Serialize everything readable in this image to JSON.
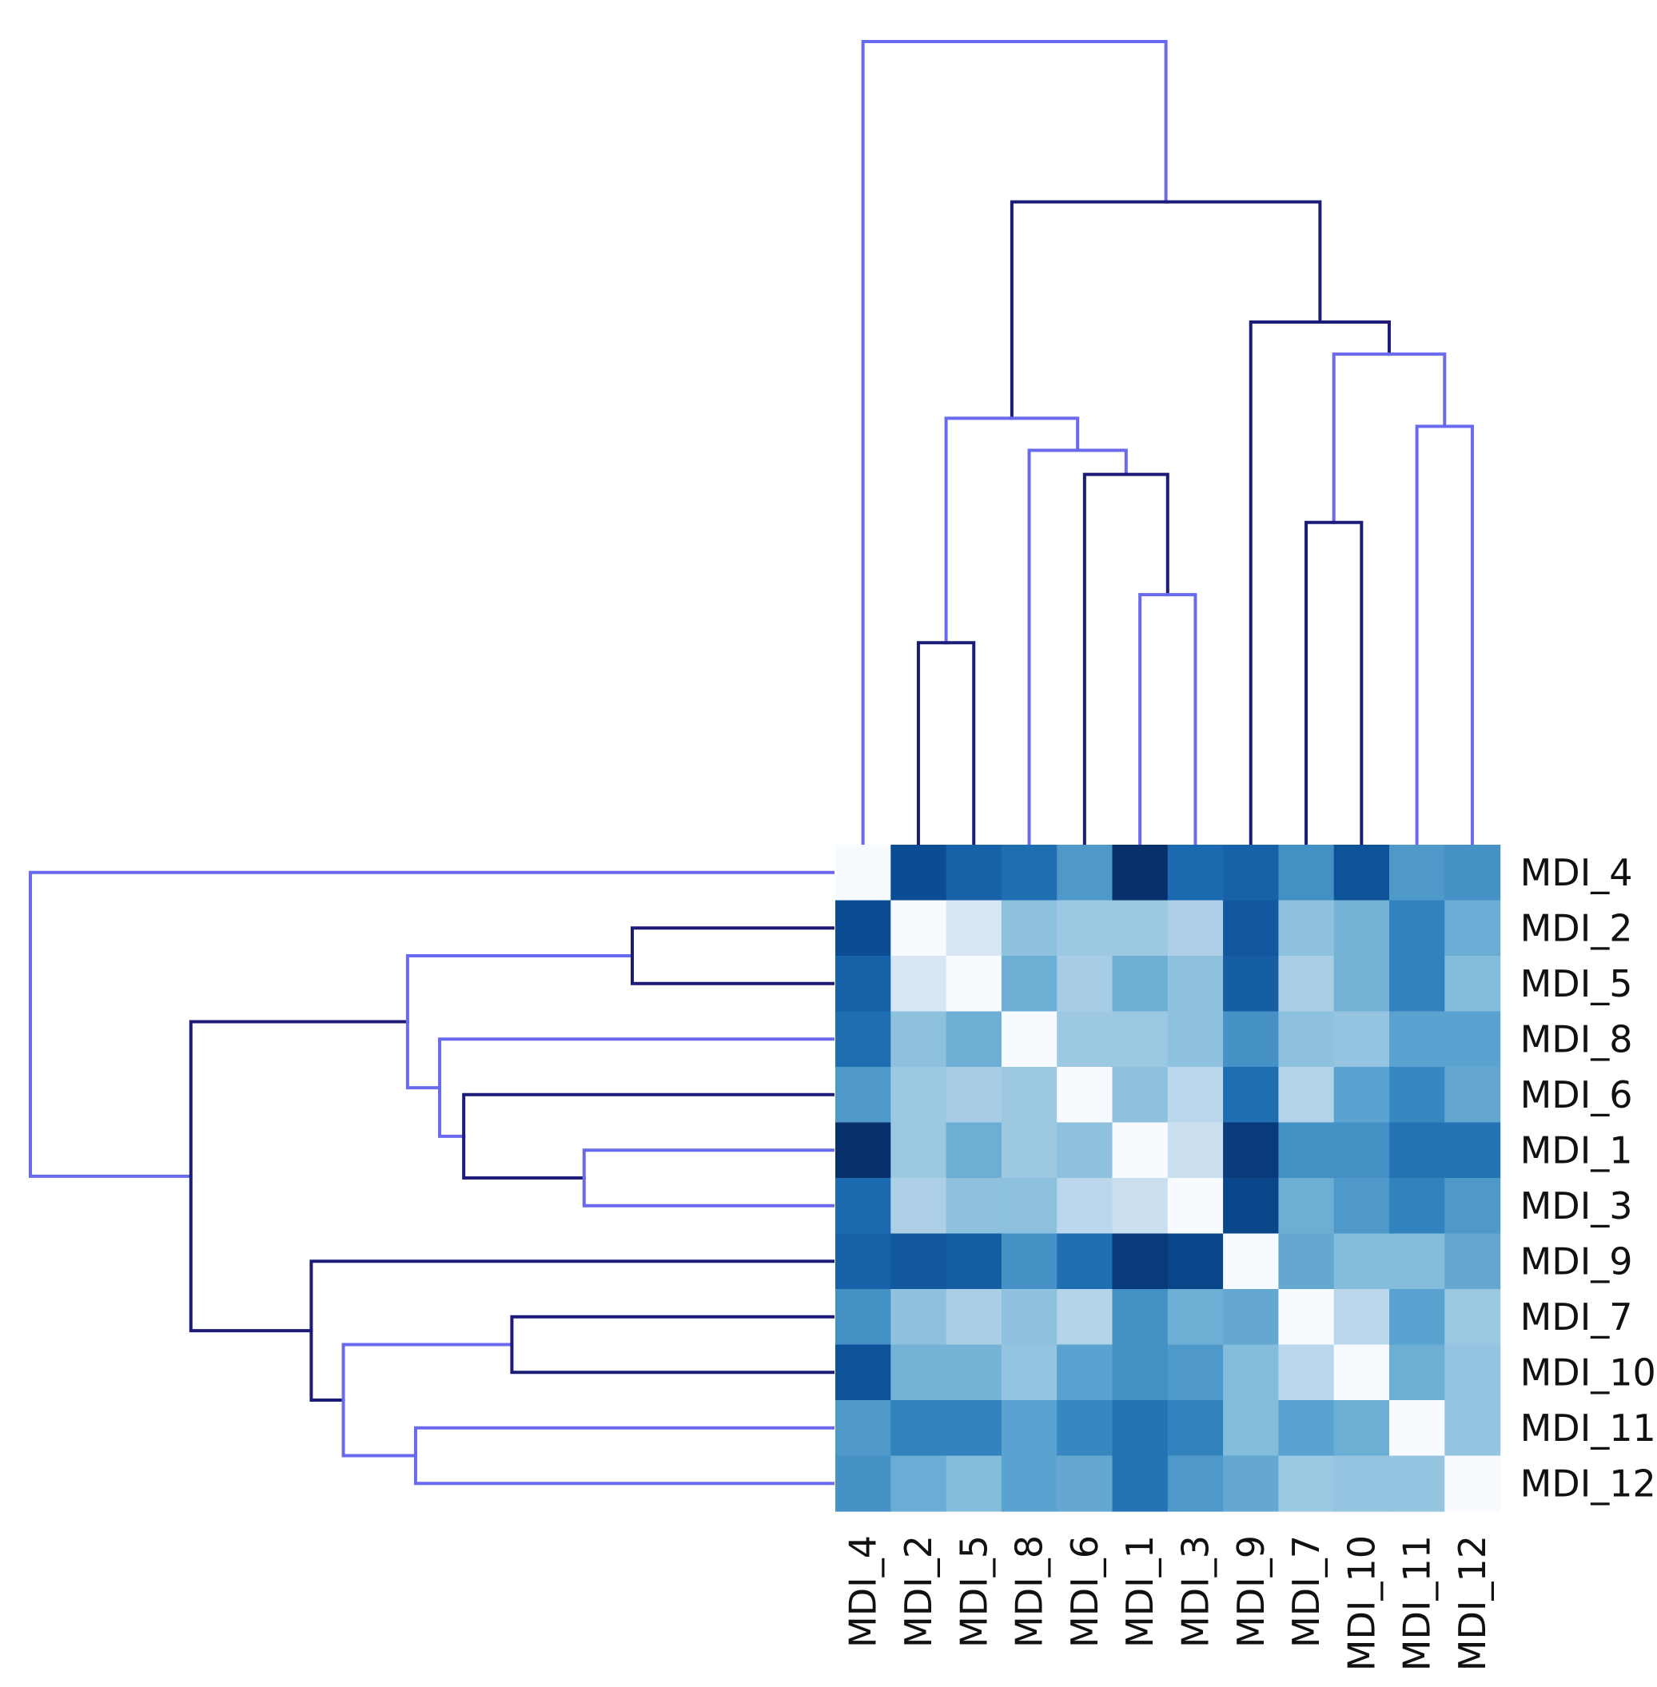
{
  "chart_data": {
    "type": "heatmap",
    "title": "",
    "xlabel": "",
    "ylabel": "",
    "rows": [
      "MDI_4",
      "MDI_2",
      "MDI_5",
      "MDI_8",
      "MDI_6",
      "MDI_1",
      "MDI_3",
      "MDI_9",
      "MDI_7",
      "MDI_10",
      "MDI_11",
      "MDI_12"
    ],
    "columns": [
      "MDI_4",
      "MDI_2",
      "MDI_5",
      "MDI_8",
      "MDI_6",
      "MDI_1",
      "MDI_3",
      "MDI_9",
      "MDI_7",
      "MDI_10",
      "MDI_11",
      "MDI_12"
    ],
    "value_scale": "relative distance, 0 = white, 1 = darkest blue (no colorbar shown)",
    "values": [
      [
        0.0,
        0.92,
        0.85,
        0.8,
        0.62,
        1.0,
        0.82,
        0.85,
        0.66,
        0.9,
        0.62,
        0.65
      ],
      [
        0.92,
        0.0,
        0.15,
        0.42,
        0.37,
        0.37,
        0.32,
        0.88,
        0.42,
        0.5,
        0.72,
        0.53
      ],
      [
        0.85,
        0.15,
        0.0,
        0.52,
        0.34,
        0.52,
        0.42,
        0.86,
        0.33,
        0.5,
        0.72,
        0.45
      ],
      [
        0.8,
        0.42,
        0.52,
        0.0,
        0.37,
        0.37,
        0.42,
        0.65,
        0.42,
        0.4,
        0.58,
        0.58
      ],
      [
        0.62,
        0.37,
        0.34,
        0.37,
        0.0,
        0.42,
        0.27,
        0.8,
        0.3,
        0.58,
        0.7,
        0.55
      ],
      [
        1.0,
        0.37,
        0.52,
        0.37,
        0.42,
        0.0,
        0.2,
        0.97,
        0.66,
        0.66,
        0.78,
        0.78
      ],
      [
        0.82,
        0.32,
        0.42,
        0.42,
        0.27,
        0.2,
        0.0,
        0.94,
        0.52,
        0.62,
        0.72,
        0.62
      ],
      [
        0.85,
        0.88,
        0.86,
        0.65,
        0.8,
        0.97,
        0.94,
        0.0,
        0.55,
        0.45,
        0.45,
        0.55
      ],
      [
        0.66,
        0.42,
        0.33,
        0.42,
        0.3,
        0.66,
        0.52,
        0.55,
        0.0,
        0.27,
        0.58,
        0.38
      ],
      [
        0.9,
        0.5,
        0.5,
        0.4,
        0.58,
        0.66,
        0.62,
        0.45,
        0.27,
        0.0,
        0.52,
        0.4
      ],
      [
        0.62,
        0.72,
        0.72,
        0.58,
        0.7,
        0.78,
        0.72,
        0.45,
        0.58,
        0.52,
        0.0,
        0.4
      ],
      [
        0.65,
        0.53,
        0.45,
        0.58,
        0.55,
        0.78,
        0.62,
        0.55,
        0.38,
        0.4,
        0.4,
        0.0
      ]
    ],
    "dendrogram": {
      "leaf_order": [
        "MDI_4",
        "MDI_2",
        "MDI_5",
        "MDI_8",
        "MDI_6",
        "MDI_1",
        "MDI_3",
        "MDI_9",
        "MDI_7",
        "MDI_10",
        "MDI_11",
        "MDI_12"
      ],
      "merges": [
        {
          "a": "MDI_1",
          "b": "MDI_3",
          "height": 0.31
        },
        {
          "a": "MDI_2",
          "b": "MDI_5",
          "height": 0.25
        },
        {
          "a": "MDI_7",
          "b": "MDI_10",
          "height": 0.4
        },
        {
          "a": "MDI_11",
          "b": "MDI_12",
          "height": 0.52
        },
        {
          "a": "MDI_6",
          "b": "[MDI_1,MDI_3]",
          "height": 0.46
        },
        {
          "a": "MDI_8",
          "b": "[MDI_6,MDI_1,MDI_3]",
          "height": 0.49
        },
        {
          "a": "[MDI_2,MDI_5]",
          "b": "[MDI_8,MDI_6,MDI_1,MDI_3]",
          "height": 0.53
        },
        {
          "a": "[MDI_7,MDI_10]",
          "b": "[MDI_11,MDI_12]",
          "height": 0.61
        },
        {
          "a": "MDI_9",
          "b": "[MDI_7,MDI_10,MDI_11,MDI_12]",
          "height": 0.65
        },
        {
          "a": "[MDI_2..MDI_3]",
          "b": "[MDI_9..MDI_12]",
          "height": 0.8
        },
        {
          "a": "MDI_4",
          "b": "[all others]",
          "height": 1.0
        }
      ]
    },
    "colors": {
      "dendrogram_light": "#6a6aee",
      "dendrogram_dark": "#1c1c78",
      "heat_low": "#f7fbff",
      "heat_high": "#08306b"
    },
    "legend": "none",
    "grid": false
  }
}
